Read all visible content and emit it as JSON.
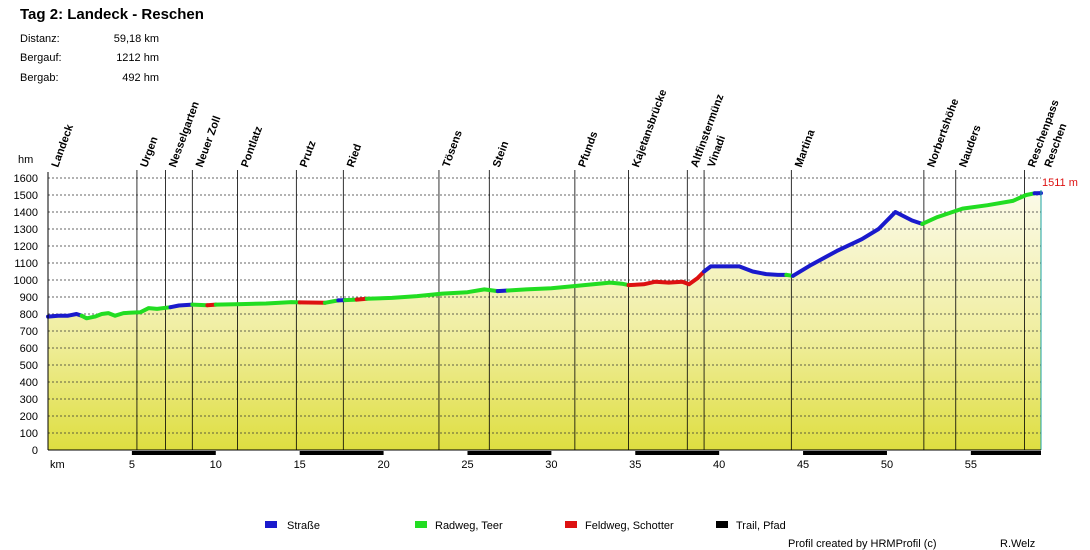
{
  "title": "Tag 2: Landeck - Reschen",
  "stats": [
    {
      "label": "Distanz:",
      "value": "59,18 km"
    },
    {
      "label": "Bergauf:",
      "value": "1212 hm"
    },
    {
      "label": "Bergab:",
      "value": "492 hm"
    }
  ],
  "end_label": "1511 m",
  "legend": [
    {
      "label": "Straße",
      "color": "#1a1acc"
    },
    {
      "label": "Radweg, Teer",
      "color": "#22dd22"
    },
    {
      "label": "Feldweg, Schotter",
      "color": "#dd1111"
    },
    {
      "label": "Trail, Pfad",
      "color": "#000000"
    }
  ],
  "credit_left": "Profil created by HRMProfil (c)",
  "credit_right": "R.Welz",
  "chart_data": {
    "type": "area",
    "xlabel": "km",
    "ylabel": "hm",
    "xlim": [
      0,
      59.18
    ],
    "ylim": [
      0,
      1600
    ],
    "x_ticks": [
      5,
      10,
      15,
      20,
      25,
      30,
      35,
      40,
      45,
      50,
      55
    ],
    "y_ticks": [
      0,
      100,
      200,
      300,
      400,
      500,
      600,
      700,
      800,
      900,
      1000,
      1100,
      1200,
      1300,
      1400,
      1500,
      1600
    ],
    "grid": true,
    "places": [
      {
        "name": "Landeck",
        "km": 0
      },
      {
        "name": "Urgen",
        "km": 5.3
      },
      {
        "name": "Nesselgarten",
        "km": 7.0
      },
      {
        "name": "Neuer Zoll",
        "km": 8.6
      },
      {
        "name": "Pontlatz",
        "km": 11.3
      },
      {
        "name": "Prutz",
        "km": 14.8
      },
      {
        "name": "Ried",
        "km": 17.6
      },
      {
        "name": "Tösens",
        "km": 23.3
      },
      {
        "name": "Stein",
        "km": 26.3
      },
      {
        "name": "Pfunds",
        "km": 31.4
      },
      {
        "name": "Kajetansbrücke",
        "km": 34.6
      },
      {
        "name": "Altfinstermünz",
        "km": 38.1
      },
      {
        "name": "Vinadi",
        "km": 39.1
      },
      {
        "name": "Martina",
        "km": 44.3
      },
      {
        "name": "Norbertshöhe",
        "km": 52.2
      },
      {
        "name": "Nauders",
        "km": 54.1
      },
      {
        "name": "Reschenpass",
        "km": 58.2
      },
      {
        "name": "Reschen",
        "km": 59.18
      }
    ],
    "segments": [
      {
        "surface": "Straße",
        "points": [
          [
            0,
            785
          ],
          [
            0.6,
            790
          ],
          [
            1.2,
            790
          ],
          [
            1.7,
            800
          ],
          [
            2.0,
            790
          ]
        ]
      },
      {
        "surface": "Radweg, Teer",
        "points": [
          [
            2.0,
            790
          ],
          [
            2.3,
            775
          ],
          [
            2.8,
            785
          ],
          [
            3.2,
            800
          ],
          [
            3.6,
            805
          ],
          [
            4.0,
            790
          ],
          [
            4.5,
            805
          ],
          [
            5.0,
            808
          ],
          [
            5.5,
            810
          ],
          [
            6.0,
            835
          ],
          [
            6.5,
            830
          ],
          [
            7.3,
            840
          ]
        ]
      },
      {
        "surface": "Straße",
        "points": [
          [
            7.3,
            840
          ],
          [
            7.8,
            850
          ],
          [
            8.6,
            855
          ]
        ]
      },
      {
        "surface": "Radweg, Teer",
        "points": [
          [
            8.6,
            855
          ],
          [
            9.5,
            852
          ]
        ]
      },
      {
        "surface": "Feldweg, Schotter",
        "points": [
          [
            9.5,
            852
          ],
          [
            10.0,
            855
          ]
        ]
      },
      {
        "surface": "Radweg, Teer",
        "points": [
          [
            10.0,
            855
          ],
          [
            11.5,
            858
          ],
          [
            13,
            862
          ],
          [
            14.5,
            870
          ],
          [
            15.0,
            868
          ]
        ]
      },
      {
        "surface": "Feldweg, Schotter",
        "points": [
          [
            15.0,
            868
          ],
          [
            16.5,
            866
          ]
        ]
      },
      {
        "surface": "Radweg, Teer",
        "points": [
          [
            16.5,
            866
          ],
          [
            17.3,
            880
          ]
        ]
      },
      {
        "surface": "Straße",
        "points": [
          [
            17.3,
            880
          ],
          [
            17.7,
            882
          ]
        ]
      },
      {
        "surface": "Radweg, Teer",
        "points": [
          [
            17.7,
            882
          ],
          [
            18.4,
            885
          ]
        ]
      },
      {
        "surface": "Feldweg, Schotter",
        "points": [
          [
            18.4,
            885
          ],
          [
            19.0,
            890
          ]
        ]
      },
      {
        "surface": "Radweg, Teer",
        "points": [
          [
            19.0,
            890
          ],
          [
            20.5,
            895
          ],
          [
            22,
            905
          ],
          [
            23.5,
            920
          ],
          [
            25,
            928
          ],
          [
            26.0,
            945
          ],
          [
            26.8,
            935
          ]
        ]
      },
      {
        "surface": "Straße",
        "points": [
          [
            26.8,
            935
          ],
          [
            27.4,
            938
          ]
        ]
      },
      {
        "surface": "Radweg, Teer",
        "points": [
          [
            27.4,
            938
          ],
          [
            28.5,
            945
          ],
          [
            30,
            952
          ],
          [
            31.5,
            965
          ],
          [
            32.5,
            975
          ],
          [
            33.5,
            985
          ],
          [
            34.2,
            978
          ],
          [
            34.6,
            970
          ]
        ]
      },
      {
        "surface": "Feldweg, Schotter",
        "points": [
          [
            34.6,
            970
          ],
          [
            35.5,
            975
          ],
          [
            36.2,
            990
          ],
          [
            37.0,
            985
          ],
          [
            37.8,
            990
          ],
          [
            38.2,
            975
          ],
          [
            38.7,
            1010
          ],
          [
            39.1,
            1050
          ]
        ]
      },
      {
        "surface": "Straße",
        "points": [
          [
            39.1,
            1050
          ],
          [
            39.5,
            1080
          ],
          [
            40.5,
            1080
          ],
          [
            41.2,
            1080
          ],
          [
            42,
            1050
          ],
          [
            42.8,
            1035
          ],
          [
            43.5,
            1030
          ],
          [
            44.0,
            1030
          ]
        ]
      },
      {
        "surface": "Radweg, Teer",
        "points": [
          [
            44.0,
            1030
          ],
          [
            44.4,
            1025
          ]
        ]
      },
      {
        "surface": "Straße",
        "points": [
          [
            44.4,
            1025
          ],
          [
            45.5,
            1090
          ],
          [
            47,
            1170
          ],
          [
            48.5,
            1240
          ],
          [
            49.5,
            1300
          ],
          [
            50.5,
            1400
          ],
          [
            51.5,
            1350
          ],
          [
            52.1,
            1330
          ]
        ]
      },
      {
        "surface": "Radweg, Teer",
        "points": [
          [
            52.1,
            1330
          ],
          [
            53,
            1370
          ],
          [
            54.5,
            1420
          ],
          [
            56,
            1440
          ],
          [
            57.5,
            1465
          ],
          [
            58.3,
            1500
          ],
          [
            58.8,
            1510
          ]
        ]
      },
      {
        "surface": "Straße",
        "points": [
          [
            58.8,
            1510
          ],
          [
            59.18,
            1511
          ]
        ]
      }
    ]
  }
}
